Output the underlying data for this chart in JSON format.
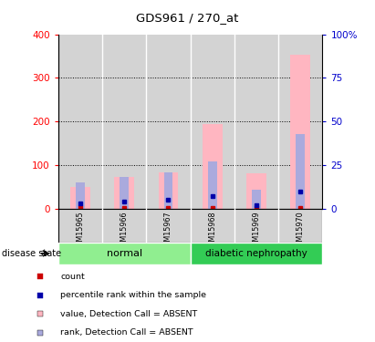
{
  "title": "GDS961 / 270_at",
  "samples": [
    "GSM15965",
    "GSM15966",
    "GSM15967",
    "GSM15968",
    "GSM15969",
    "GSM15970"
  ],
  "value_absent": [
    50,
    72,
    83,
    193,
    82,
    353
  ],
  "rank_absent_pct": [
    15,
    18,
    21,
    27,
    11,
    43
  ],
  "count_values": [
    3,
    2,
    2,
    2,
    2,
    2
  ],
  "rank_within_pct": [
    3,
    4,
    5,
    7,
    2,
    10
  ],
  "left_ylim": [
    0,
    400
  ],
  "right_ylim": [
    0,
    100
  ],
  "left_yticks": [
    0,
    100,
    200,
    300,
    400
  ],
  "right_yticks": [
    0,
    25,
    50,
    75,
    100
  ],
  "right_yticklabels": [
    "0",
    "25",
    "50",
    "75",
    "100%"
  ],
  "left_color": "#FF0000",
  "right_color": "#0000CC",
  "bar_color_value": "#FFB6C1",
  "bar_color_rank": "#AAAADD",
  "count_color": "#CC0000",
  "rank_color": "#0000AA",
  "grid_color": "#000000",
  "plot_bg": "#FFFFFF",
  "sample_bg": "#D3D3D3",
  "group_normal_color": "#90EE90",
  "group_diabetic_color": "#33CC55"
}
